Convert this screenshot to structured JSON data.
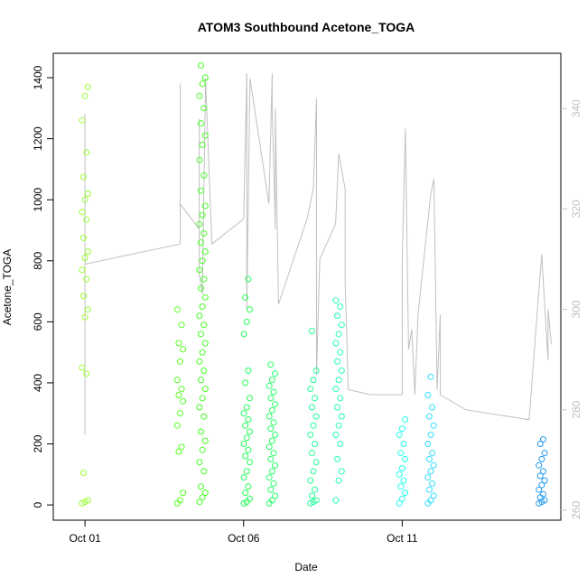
{
  "chart_data": {
    "type": "scatter",
    "title": "ATOM3 Southbound Acetone_TOGA",
    "xlabel": "Date",
    "ylabel": "Acetone_TOGA",
    "x_ticks": [
      "Oct 01",
      "Oct 06",
      "Oct 11"
    ],
    "y_ticks": [
      0,
      200,
      400,
      600,
      800,
      1000,
      1200,
      1400
    ],
    "y2_ticks": [
      260,
      280,
      300,
      320,
      340
    ],
    "xlim": [
      "2017-09-30",
      "2017-10-16"
    ],
    "ylim": [
      -50,
      1480
    ],
    "y2lim": [
      258,
      351
    ],
    "grid": false,
    "legend": "none",
    "point_series": [
      {
        "date": "2017-10-01",
        "color": "#99ff33",
        "values": [
          5,
          10,
          15,
          105,
          430,
          450,
          615,
          640,
          685,
          740,
          770,
          810,
          830,
          875,
          935,
          960,
          1000,
          1020,
          1075,
          1155,
          1260,
          1340,
          1370
        ]
      },
      {
        "date": "2017-10-04",
        "color": "#55ff22",
        "values": [
          5,
          15,
          40,
          175,
          190,
          260,
          300,
          340,
          360,
          380,
          410,
          470,
          510,
          530,
          590,
          640
        ]
      },
      {
        "date": "2017-10-04.7",
        "color": "#44ff22",
        "values": [
          10,
          25,
          40,
          60,
          110,
          140,
          180,
          210,
          240,
          290,
          320,
          350,
          380,
          410,
          440,
          470,
          500,
          530,
          560,
          590,
          620,
          650,
          680,
          710,
          740,
          770,
          800,
          830,
          860,
          890,
          920,
          950,
          980,
          1030,
          1080,
          1130,
          1180,
          1210,
          1250,
          1300,
          1340,
          1380,
          1400,
          1440
        ]
      },
      {
        "date": "2017-10-06.1",
        "color": "#22ff55",
        "values": [
          5,
          10,
          20,
          40,
          60,
          90,
          110,
          140,
          160,
          180,
          200,
          220,
          240,
          260,
          280,
          300,
          320,
          350,
          400,
          440,
          560,
          600,
          640,
          680,
          740
        ]
      },
      {
        "date": "2017-10-06.9",
        "color": "#22ff66",
        "values": [
          5,
          15,
          30,
          50,
          70,
          90,
          110,
          130,
          150,
          170,
          190,
          210,
          230,
          250,
          270,
          290,
          310,
          330,
          350,
          370,
          390,
          410,
          430,
          460
        ]
      },
      {
        "date": "2017-10-08.2",
        "color": "#22ff99",
        "values": [
          5,
          10,
          15,
          30,
          50,
          80,
          110,
          140,
          170,
          200,
          230,
          260,
          290,
          320,
          350,
          380,
          410,
          440,
          570
        ]
      },
      {
        "date": "2017-10-09",
        "color": "#22ffbb",
        "values": [
          15,
          80,
          110,
          150,
          200,
          230,
          260,
          290,
          320,
          350,
          380,
          410,
          440,
          470,
          500,
          530,
          560,
          590,
          620,
          650,
          670
        ]
      },
      {
        "date": "2017-10-11",
        "color": "#22ffee",
        "values": [
          5,
          20,
          40,
          60,
          80,
          100,
          120,
          150,
          170,
          200,
          230,
          250,
          280
        ]
      },
      {
        "date": "2017-10-11.9",
        "color": "#33ddff",
        "values": [
          5,
          15,
          30,
          50,
          70,
          90,
          110,
          130,
          150,
          170,
          200,
          230,
          260,
          290,
          320,
          360,
          420
        ]
      },
      {
        "date": "2017-10-15.4",
        "color": "#2299ee",
        "values": [
          5,
          10,
          15,
          25,
          35,
          50,
          65,
          80,
          95,
          110,
          130,
          150,
          170,
          200,
          215
        ]
      }
    ],
    "line_series": {
      "color": "#c0c0c0",
      "axis": "right",
      "points": [
        [
          "2017-10-01",
          309
        ],
        [
          "2017-10-01",
          275
        ],
        [
          "2017-10-01",
          339
        ],
        [
          "2017-10-01",
          309
        ],
        [
          "2017-10-04",
          313
        ],
        [
          "2017-10-04",
          323
        ],
        [
          "2017-10-04",
          345
        ],
        [
          "2017-10-04",
          321
        ],
        [
          "2017-10-04.6",
          316
        ],
        [
          "2017-10-04.6",
          338
        ],
        [
          "2017-10-04.6",
          318
        ],
        [
          "2017-10-04.6",
          307
        ],
        [
          "2017-10-04.7",
          303
        ],
        [
          "2017-10-04.8",
          346
        ],
        [
          "2017-10-05",
          313
        ],
        [
          "2017-10-06",
          318
        ],
        [
          "2017-10-06.1",
          347
        ],
        [
          "2017-10-06.1",
          300
        ],
        [
          "2017-10-06.2",
          346
        ],
        [
          "2017-10-06.8",
          321
        ],
        [
          "2017-10-06.9",
          347
        ],
        [
          "2017-10-06.9",
          340
        ],
        [
          "2017-10-07",
          316
        ],
        [
          "2017-10-07",
          340
        ],
        [
          "2017-10-07.1",
          301
        ],
        [
          "2017-10-08",
          318
        ],
        [
          "2017-10-08.2",
          324
        ],
        [
          "2017-10-08.3",
          342
        ],
        [
          "2017-10-08.3",
          287
        ],
        [
          "2017-10-08.4",
          310
        ],
        [
          "2017-10-08.9",
          317
        ],
        [
          "2017-10-09",
          331
        ],
        [
          "2017-10-09.2",
          324
        ],
        [
          "2017-10-09.2",
          305
        ],
        [
          "2017-10-09.3",
          284
        ],
        [
          "2017-10-10",
          283
        ],
        [
          "2017-10-11",
          283
        ],
        [
          "2017-10-11",
          310
        ],
        [
          "2017-10-11.1",
          336
        ],
        [
          "2017-10-11.2",
          292
        ],
        [
          "2017-10-11.3",
          296
        ],
        [
          "2017-10-11.4",
          283
        ],
        [
          "2017-10-11.5",
          299
        ],
        [
          "2017-10-11.9",
          323
        ],
        [
          "2017-10-12",
          326
        ],
        [
          "2017-10-12.1",
          284
        ],
        [
          "2017-10-12.2",
          299
        ],
        [
          "2017-10-12.2",
          283
        ],
        [
          "2017-10-13",
          280
        ],
        [
          "2017-10-15",
          278
        ],
        [
          "2017-10-15.3",
          303
        ],
        [
          "2017-10-15.4",
          311
        ],
        [
          "2017-10-15.5",
          300
        ],
        [
          "2017-10-15.6",
          290
        ],
        [
          "2017-10-15.6",
          300
        ],
        [
          "2017-10-15.7",
          293
        ]
      ]
    }
  }
}
